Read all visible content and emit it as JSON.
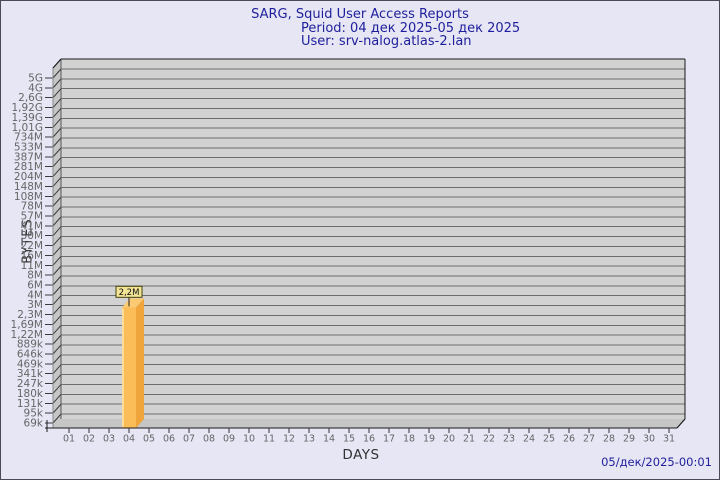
{
  "header": {
    "title": "SARG, Squid User Access Reports",
    "period": "Period: 04 дек 2025-05 дек 2025",
    "user": "User: srv-nalog.atlas-2.lan"
  },
  "footer": {
    "timestamp": "05/дек/2025-00:01"
  },
  "chart_data": {
    "type": "bar",
    "title": "SARG, Squid User Access Reports",
    "subtitle": "Period: 04 дек 2025-05 дек 2025 — User: srv-nalog.atlas-2.lan",
    "xlabel": "DAYS",
    "ylabel": "BYTES",
    "x_categories": [
      "01",
      "02",
      "03",
      "04",
      "05",
      "06",
      "07",
      "08",
      "09",
      "10",
      "11",
      "12",
      "13",
      "14",
      "15",
      "16",
      "17",
      "18",
      "19",
      "20",
      "21",
      "22",
      "23",
      "24",
      "25",
      "26",
      "27",
      "28",
      "29",
      "30",
      "31"
    ],
    "y_tick_labels": [
      "5G",
      "4G",
      "2,6G",
      "1,92G",
      "1,39G",
      "1,01G",
      "734M",
      "533M",
      "387M",
      "281M",
      "204M",
      "148M",
      "108M",
      "78M",
      "57M",
      "41M",
      "30M",
      "22M",
      "16M",
      "11M",
      "8M",
      "6M",
      "4M",
      "3M",
      "2,3M",
      "1,69M",
      "1,22M",
      "889k",
      "646k",
      "469k",
      "341k",
      "247k",
      "180k",
      "131k",
      "95k",
      "69k"
    ],
    "y_scale": "log-like, ratio ~1.377 per gridline, 69k bottom to 5G top",
    "grid": true,
    "bars": [
      {
        "day": "04",
        "bytes": 2200000,
        "label": "2,2M"
      }
    ],
    "colors": {
      "page_bg": "#E6E6F5",
      "plot_bg": "#D2D2D2",
      "wall": "#C6C6C6",
      "grid": "#6E6E6E",
      "axis_line": "#1a1a1a",
      "axis_text": "#666666",
      "title_text": "#1F1F9C",
      "bar_face": "#FBBD58",
      "bar_side": "#EFA43C",
      "bar_top": "#FCCA72",
      "bar_highlight": "#FDDC9A",
      "label_box_bg": "#F2E395",
      "label_box_border": "#44440E",
      "label_text": "#111111"
    }
  }
}
